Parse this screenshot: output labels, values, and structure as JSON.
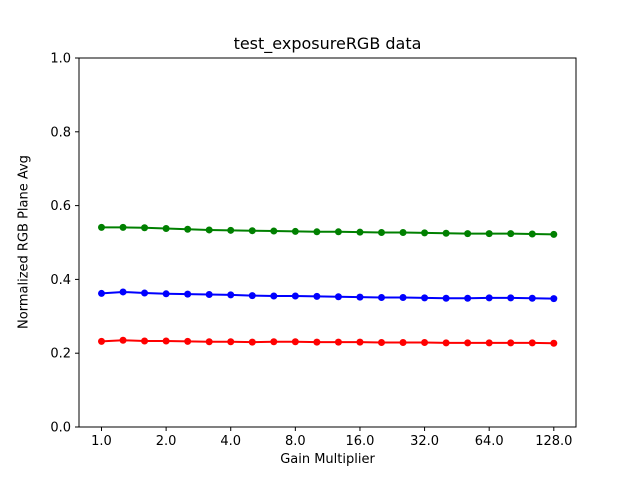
{
  "chart_data": {
    "type": "line",
    "title": "test_exposureRGB data",
    "xlabel": "Gain Multiplier",
    "ylabel": "Normalized RGB Plane Avg",
    "x_scale": "log2",
    "ylim": [
      0.0,
      1.0
    ],
    "x_data_range": [
      1.0,
      128.0
    ],
    "grid": false,
    "legend": "none",
    "x": [
      1.0,
      1.26,
      1.587,
      2.0,
      2.52,
      3.175,
      4.0,
      5.04,
      6.35,
      8.0,
      10.079,
      12.699,
      16.0,
      20.159,
      25.398,
      32.0,
      40.317,
      50.797,
      64.0,
      80.635,
      101.594,
      128.0
    ],
    "series": [
      {
        "name": "green-plane",
        "color": "#008000",
        "values": [
          0.541,
          0.541,
          0.54,
          0.538,
          0.536,
          0.534,
          0.533,
          0.532,
          0.531,
          0.53,
          0.529,
          0.529,
          0.528,
          0.527,
          0.527,
          0.526,
          0.525,
          0.524,
          0.524,
          0.524,
          0.523,
          0.522
        ]
      },
      {
        "name": "blue-plane",
        "color": "#0000ff",
        "values": [
          0.362,
          0.366,
          0.363,
          0.361,
          0.36,
          0.359,
          0.358,
          0.356,
          0.355,
          0.355,
          0.354,
          0.353,
          0.352,
          0.351,
          0.351,
          0.35,
          0.349,
          0.349,
          0.35,
          0.35,
          0.349,
          0.348
        ]
      },
      {
        "name": "red-plane",
        "color": "#ff0000",
        "values": [
          0.232,
          0.235,
          0.233,
          0.233,
          0.232,
          0.231,
          0.231,
          0.23,
          0.231,
          0.231,
          0.23,
          0.23,
          0.23,
          0.229,
          0.229,
          0.229,
          0.228,
          0.228,
          0.228,
          0.228,
          0.228,
          0.227
        ]
      }
    ],
    "x_tick_values": [
      1.0,
      2.0,
      4.0,
      8.0,
      16.0,
      32.0,
      64.0,
      128.0
    ],
    "x_tick_labels": [
      "1.0",
      "2.0",
      "4.0",
      "8.0",
      "16.0",
      "32.0",
      "64.0",
      "128.0"
    ],
    "y_tick_values": [
      0.0,
      0.2,
      0.4,
      0.6,
      0.8,
      1.0
    ],
    "y_tick_labels": [
      "0.0",
      "0.2",
      "0.4",
      "0.6",
      "0.8",
      "1.0"
    ],
    "axis_color": "#000000",
    "background_color": "#ffffff"
  }
}
